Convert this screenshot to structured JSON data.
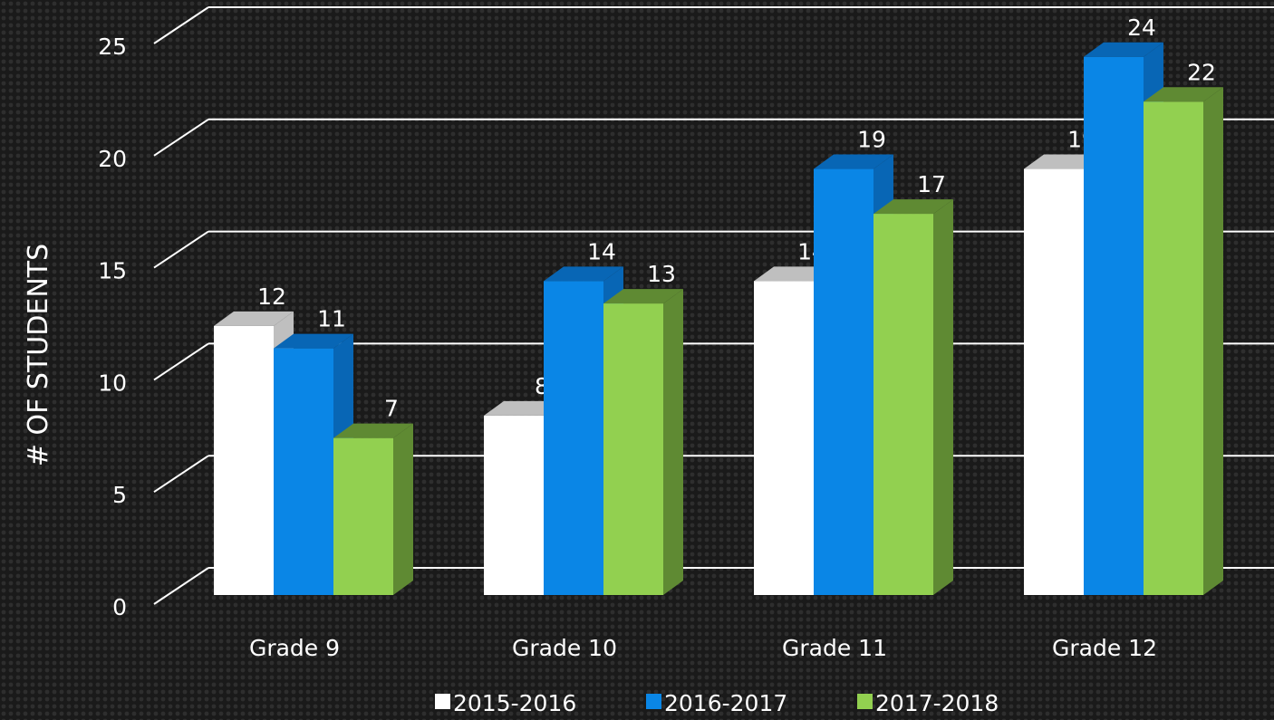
{
  "chart_data": {
    "type": "bar3d",
    "y_axis_label": "# OF STUDENTS",
    "categories": [
      "Grade 9",
      "Grade 10",
      "Grade 11",
      "Grade 12"
    ],
    "series": [
      {
        "name": "2015-2016",
        "color": "#ffffff",
        "side": "#bfbfbf",
        "values": [
          12,
          8,
          14,
          19
        ]
      },
      {
        "name": "2016-2017",
        "color": "#0a86e6",
        "side": "#0866b5",
        "values": [
          11,
          14,
          19,
          24
        ]
      },
      {
        "name": "2017-2018",
        "color": "#92d050",
        "side": "#5f8a33",
        "values": [
          7,
          13,
          17,
          22
        ]
      }
    ],
    "ylim": [
      0,
      25
    ],
    "yticks": [
      0,
      5,
      10,
      15,
      20,
      25
    ],
    "grid": true,
    "legend": "bottom"
  }
}
